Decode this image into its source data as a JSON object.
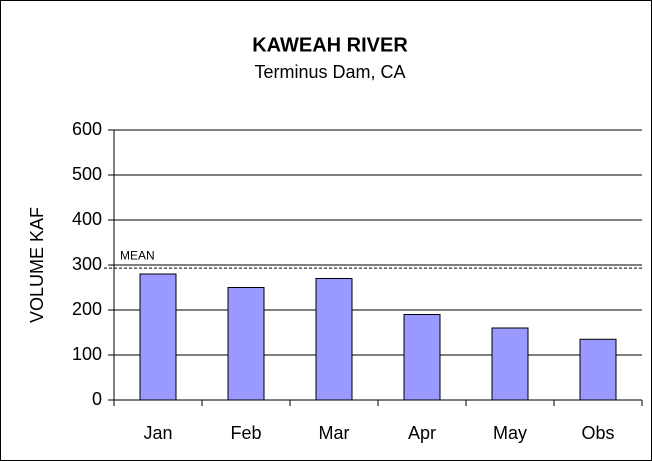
{
  "chart_data": {
    "type": "bar",
    "title": "KAWEAH RIVER",
    "subtitle": "Terminus Dam, CA",
    "y_label": "VOLUME KAF",
    "categories": [
      "Jan",
      "Feb",
      "Mar",
      "Apr",
      "May",
      "Obs"
    ],
    "values": [
      280,
      250,
      270,
      190,
      160,
      135
    ],
    "color": "#9999ff",
    "ylim": [
      0,
      600
    ],
    "yticks": [
      0,
      100,
      200,
      300,
      400,
      500,
      600
    ],
    "grid": true,
    "mean": {
      "label": "MEAN",
      "value": 293
    }
  }
}
